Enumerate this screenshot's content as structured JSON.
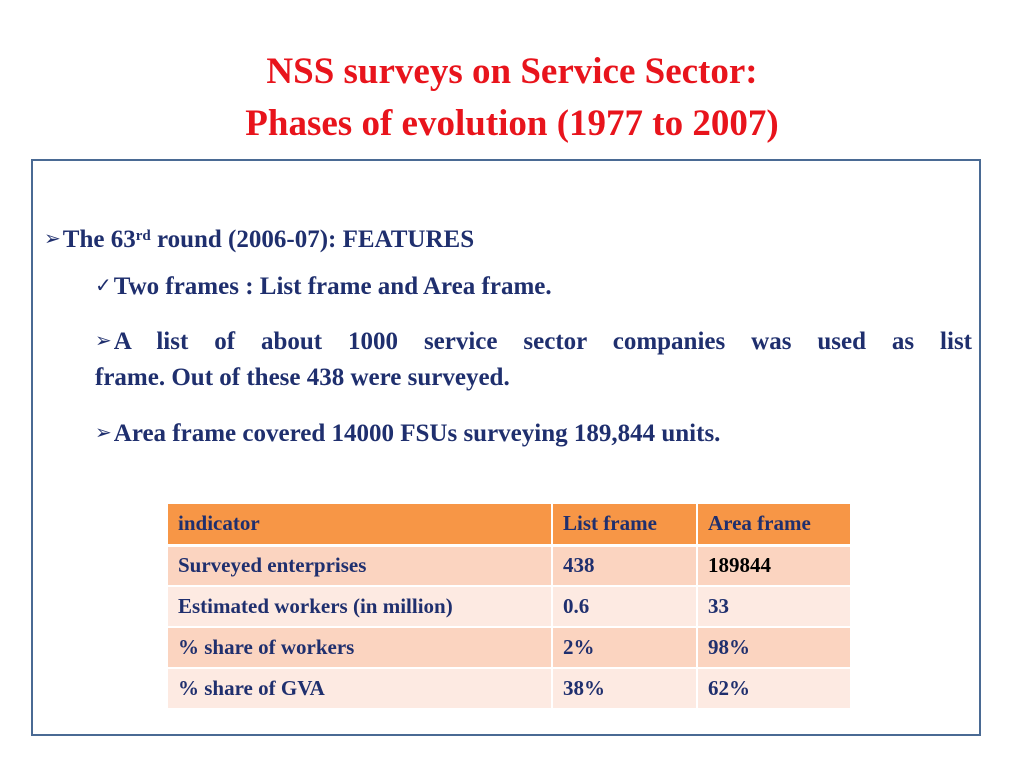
{
  "title": {
    "line1": "NSS surveys on Service Sector:",
    "line2": "Phases of evolution (1977 to 2007)"
  },
  "bullets": {
    "main_prefix": "The 63",
    "main_sup": "rd",
    "main_suffix": " round (2006-07):  FEATURES",
    "check_item": "Two frames : List frame and Area frame.",
    "list_frame_line1": "A list of about 1000 service sector companies was used as list",
    "list_frame_line2": "frame. Out of these 438 were surveyed.",
    "area_frame": "Area frame covered 14000 FSUs surveying 189,844 units."
  },
  "table": {
    "headers": [
      "indicator",
      "List frame",
      "Area frame"
    ],
    "rows": [
      [
        "Surveyed enterprises",
        "438",
        "189844"
      ],
      [
        "Estimated workers (in million)",
        "0.6",
        "33"
      ],
      [
        "% share of workers",
        "2%",
        "98%"
      ],
      [
        "% share of GVA",
        "38%",
        "62%"
      ]
    ]
  },
  "colors": {
    "title": "#e8141c",
    "text": "#1f2f6e",
    "border": "#4a6a94",
    "table_header": "#f79646",
    "table_row_odd": "#fbd4c0",
    "table_row_even": "#fdeae2"
  },
  "icons": {
    "arrow_bullet": "arrow-bullet-icon",
    "check_bullet": "checkmark-icon"
  }
}
